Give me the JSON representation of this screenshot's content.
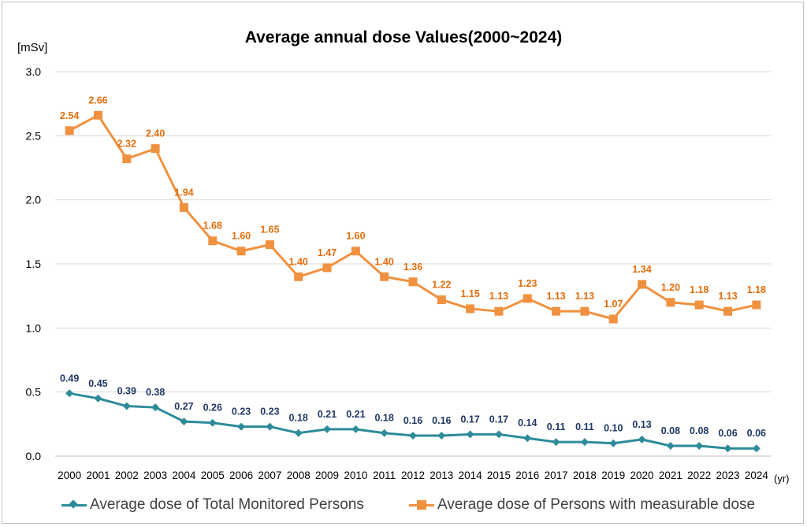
{
  "chart_data": {
    "type": "line",
    "title": "Average annual dose Values(2000~2024)",
    "ylabel": "[mSv]",
    "xlabel": "(yr)",
    "ylim": [
      0,
      3.0
    ],
    "yticks": [
      "0.0",
      "0.5",
      "1.0",
      "1.5",
      "2.0",
      "2.5",
      "3.0"
    ],
    "ytick_values": [
      0,
      0.5,
      1.0,
      1.5,
      2.0,
      2.5,
      3.0
    ],
    "grid": true,
    "legend_position": "bottom",
    "categories": [
      "2000",
      "2001",
      "2002",
      "2003",
      "2004",
      "2005",
      "2006",
      "2007",
      "2008",
      "2009",
      "2010",
      "2011",
      "2012",
      "2013",
      "2014",
      "2015",
      "2016",
      "2017",
      "2018",
      "2019",
      "2020",
      "2021",
      "2022",
      "2023",
      "2024"
    ],
    "series": [
      {
        "name": "Average dose of Total Monitored Persons",
        "color": "#2e8b9a",
        "label_color": "#1f3864",
        "marker": "diamond",
        "values": [
          0.49,
          0.45,
          0.39,
          0.38,
          0.27,
          0.26,
          0.23,
          0.23,
          0.18,
          0.21,
          0.21,
          0.18,
          0.16,
          0.16,
          0.17,
          0.17,
          0.14,
          0.11,
          0.11,
          0.1,
          0.13,
          0.08,
          0.08,
          0.06,
          0.06
        ],
        "labels": [
          "0.49",
          "0.45",
          "0.39",
          "0.38",
          "0.27",
          "0.26",
          "0.23",
          "0.23",
          "0.18",
          "0.21",
          "0.21",
          "0.18",
          "0.16",
          "0.16",
          "0.17",
          "0.17",
          "0.14",
          "0.11",
          "0.11",
          "0.10",
          "0.13",
          "0.08",
          "0.08",
          "0.06",
          "0.06"
        ]
      },
      {
        "name": "Average dose of Persons with measurable dose",
        "color": "#f0913f",
        "label_color": "#e36c0a",
        "marker": "square",
        "values": [
          2.54,
          2.66,
          2.32,
          2.4,
          1.94,
          1.68,
          1.6,
          1.65,
          1.4,
          1.47,
          1.6,
          1.4,
          1.36,
          1.22,
          1.15,
          1.13,
          1.23,
          1.13,
          1.13,
          1.07,
          1.34,
          1.2,
          1.18,
          1.13,
          1.18
        ],
        "labels": [
          "2.54",
          "2.66",
          "2.32",
          "2.40",
          "1.94",
          "1.68",
          "1.60",
          "1.65",
          "1.40",
          "1.47",
          "1.60",
          "1.40",
          "1.36",
          "1.22",
          "1.15",
          "1.13",
          "1.23",
          "1.13",
          "1.13",
          "1.07",
          "1.34",
          "1.20",
          "1.18",
          "1.13",
          "1.18"
        ]
      }
    ]
  }
}
